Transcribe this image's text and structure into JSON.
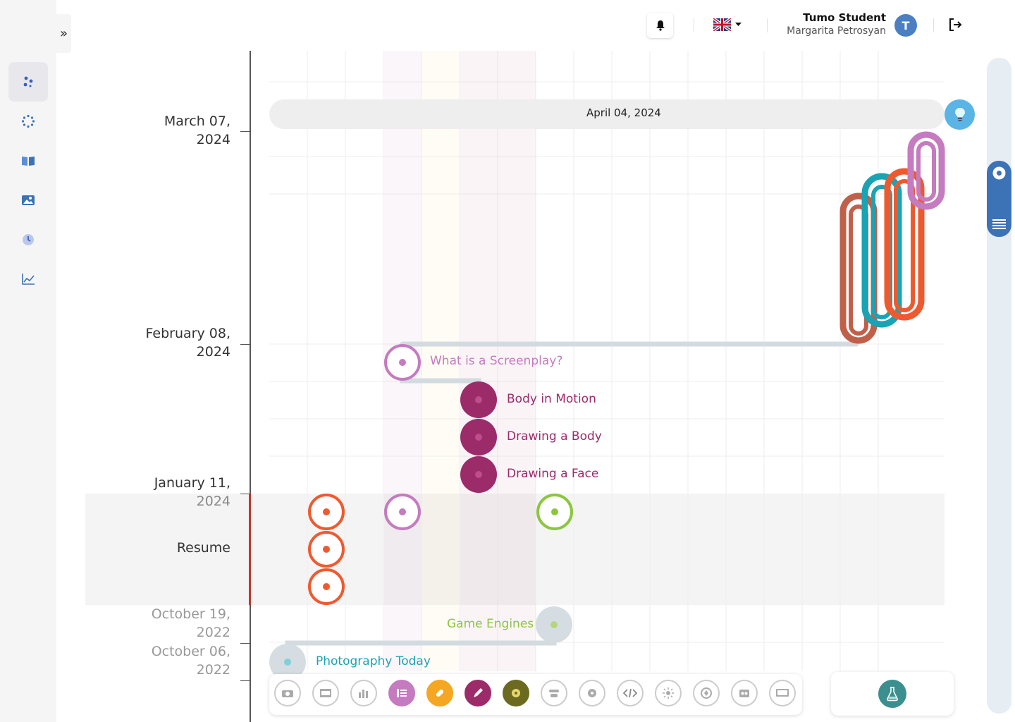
{
  "user": {
    "role": "Tumo Student",
    "name": "Margarita Petrosyan",
    "avatar_letter": "T"
  },
  "language": {
    "flag": "uk-flag-icon",
    "caret": "caret-down-icon"
  },
  "sidebar": {
    "items": [
      {
        "name": "dashboard-icon",
        "active": true
      },
      {
        "name": "activities-icon",
        "active": false
      },
      {
        "name": "book-icon",
        "active": false
      },
      {
        "name": "gallery-icon",
        "active": false
      },
      {
        "name": "clock-icon",
        "active": false
      },
      {
        "name": "chart-icon",
        "active": false
      }
    ],
    "expand_glyph": "»"
  },
  "timeline": {
    "dates": [
      {
        "l1": "March 07,",
        "l2": "2024"
      },
      {
        "l1": "February 08,",
        "l2": "2024"
      },
      {
        "l1": "January 11,",
        "l2": "2024"
      },
      {
        "l1": "October 19,",
        "l2": "2022"
      },
      {
        "l1": "October 06,",
        "l2": "2022"
      }
    ],
    "resume_label": "Resume",
    "banner_date": "April 04, 2024"
  },
  "activities": [
    {
      "label": "What is a Screenplay?",
      "color": "#c57bbf"
    },
    {
      "label": "Body in Motion",
      "color": "#9c2b6a"
    },
    {
      "label": "Drawing a Body",
      "color": "#9c2b6a"
    },
    {
      "label": "Drawing a Face",
      "color": "#9c2b6a"
    },
    {
      "label": "Game Engines",
      "color": "#8cc63f"
    },
    {
      "label": "Photography Today",
      "color": "#1aa3b3"
    }
  ],
  "colors": {
    "accent_orange": "#ee5a2f",
    "accent_purple": "#c57bbf",
    "accent_magenta": "#9c2b6a",
    "accent_green": "#8cc63f",
    "accent_teal": "#1aa3b3",
    "scroll_blue": "#3c72b6",
    "paperclip_brown": "#c0604a",
    "paperclip_teal": "#1aa3b3",
    "paperclip_orange": "#ee5a2f",
    "paperclip_purple": "#c57bbf"
  },
  "toolbar": {
    "icons": [
      "photography-icon",
      "film-icon",
      "data-icon",
      "writing-icon",
      "bandaid-icon",
      "drawing-icon",
      "game-icon",
      "robotics-icon",
      "settings-icon",
      "code-icon",
      "light-icon",
      "3d-icon",
      "music-icon",
      "screen-icon"
    ],
    "lab_icon": "lab-flask-icon"
  }
}
